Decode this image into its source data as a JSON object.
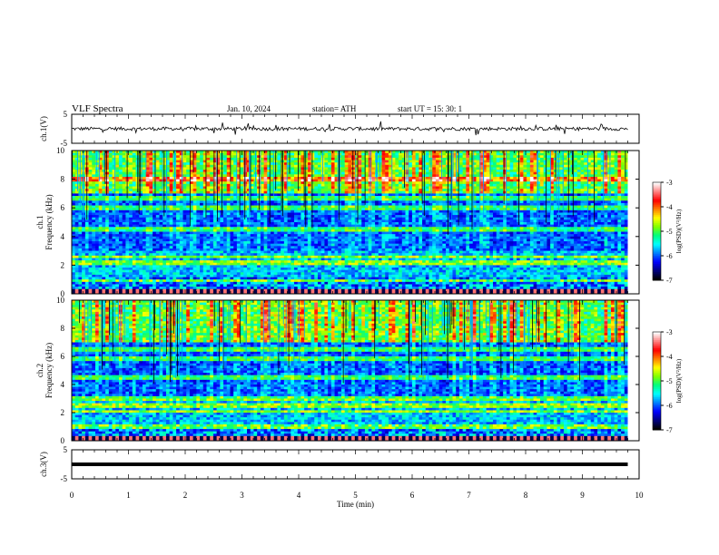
{
  "header": {
    "title": "VLF  Spectra",
    "date": "Jan. 10, 2024",
    "station": "station= ATH",
    "start": "start  UT  =    15: 30: 1"
  },
  "colorbar": {
    "label": "log(PSD)(V²/Hz)",
    "ticks": [
      "-3",
      "-4",
      "-5",
      "-6",
      "-7"
    ],
    "colors": [
      "#000000",
      "#00007f",
      "#0000ff",
      "#0080ff",
      "#00ffff",
      "#00ff80",
      "#80ff00",
      "#ffff00",
      "#ff8000",
      "#ff0000",
      "#ff8080",
      "#ffffff"
    ]
  },
  "chart_data": [
    {
      "type": "line",
      "name": "ch1-waveform",
      "ylabel": "ch.1(V)",
      "xlim": [
        0,
        10
      ],
      "ylim": [
        -5,
        5
      ],
      "yticks": [
        "5",
        "-5"
      ],
      "signal_level": 0,
      "duration_min": 9.8
    },
    {
      "type": "heatmap",
      "name": "ch1-spectrogram",
      "ylabel": "ch.1\nFrequency  (kHz)",
      "xlim": [
        0,
        10
      ],
      "ylim": [
        0,
        10
      ],
      "yticks": [
        "0",
        "2",
        "4",
        "6",
        "8",
        "10"
      ],
      "duration_min": 9.8,
      "zlim": [
        -7,
        -3
      ],
      "bands_khz": [
        0.9,
        2.2,
        2.6,
        4.5,
        6.0,
        6.7,
        8.0
      ]
    },
    {
      "type": "heatmap",
      "name": "ch2-spectrogram",
      "ylabel": "ch.2\nFrequency  (kHz)",
      "xlim": [
        0,
        10
      ],
      "ylim": [
        0,
        10
      ],
      "yticks": [
        "0",
        "2",
        "4",
        "6",
        "8",
        "10"
      ],
      "duration_min": 9.8,
      "zlim": [
        -7,
        -3
      ],
      "bands_khz": [
        1.0,
        2.1,
        2.5,
        3.0,
        4.5,
        5.8,
        6.5
      ]
    },
    {
      "type": "line",
      "name": "ch3-waveform",
      "ylabel": "ch.3(V)",
      "xlabel": "Time  (min)",
      "xlim": [
        0,
        10
      ],
      "ylim": [
        -5,
        5
      ],
      "yticks": [
        "5",
        "-5"
      ],
      "xticks": [
        "0",
        "1",
        "2",
        "3",
        "4",
        "5",
        "6",
        "7",
        "8",
        "9",
        "10"
      ],
      "signal_level": 0,
      "duration_min": 9.8
    }
  ]
}
